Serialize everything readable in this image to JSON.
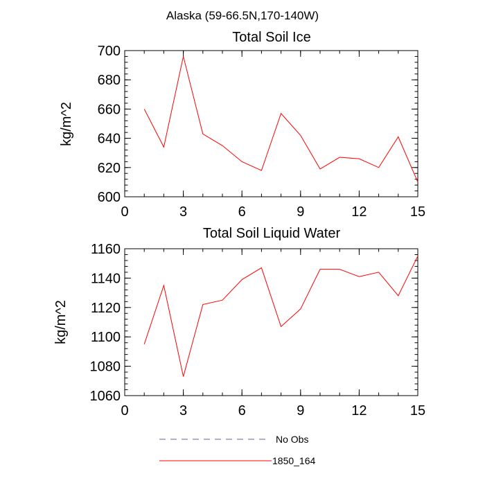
{
  "figure": {
    "title": "Alaska (59-66.5N,170-140W)"
  },
  "chart_data": [
    {
      "type": "line",
      "title": "Total Soil Ice",
      "xlabel": "",
      "ylabel": "kg/m^2",
      "xlim": [
        0,
        15
      ],
      "ylim": [
        600,
        700
      ],
      "xticks": [
        0,
        3,
        6,
        9,
        12,
        15
      ],
      "yticks": [
        600,
        620,
        640,
        660,
        680,
        700
      ],
      "series": [
        {
          "name": "1850_164",
          "color": "#ff0000",
          "x": [
            1,
            2,
            3,
            4,
            5,
            6,
            7,
            8,
            9,
            10,
            11,
            12,
            13,
            14,
            15
          ],
          "y": [
            660,
            634,
            696,
            643,
            635,
            624,
            618,
            657,
            642,
            619,
            627,
            626,
            620,
            641,
            610
          ]
        }
      ]
    },
    {
      "type": "line",
      "title": "Total Soil Liquid Water",
      "xlabel": "",
      "ylabel": "kg/m^2",
      "xlim": [
        0,
        15
      ],
      "ylim": [
        1060,
        1160
      ],
      "xticks": [
        0,
        3,
        6,
        9,
        12,
        15
      ],
      "yticks": [
        1060,
        1080,
        1100,
        1120,
        1140,
        1160
      ],
      "series": [
        {
          "name": "1850_164",
          "color": "#ff0000",
          "x": [
            1,
            2,
            3,
            4,
            5,
            6,
            7,
            8,
            9,
            10,
            11,
            12,
            13,
            14,
            15
          ],
          "y": [
            1095,
            1135,
            1073,
            1122,
            1125,
            1139,
            1147,
            1107,
            1119,
            1146,
            1146,
            1141,
            1144,
            1128,
            1155
          ]
        }
      ]
    }
  ],
  "legend": {
    "placement": "bottom",
    "entries": [
      {
        "label": "No Obs",
        "color": "#6060a0",
        "style": "dashed"
      },
      {
        "label": "1850_164",
        "color": "#ff0000",
        "style": "solid"
      }
    ]
  }
}
